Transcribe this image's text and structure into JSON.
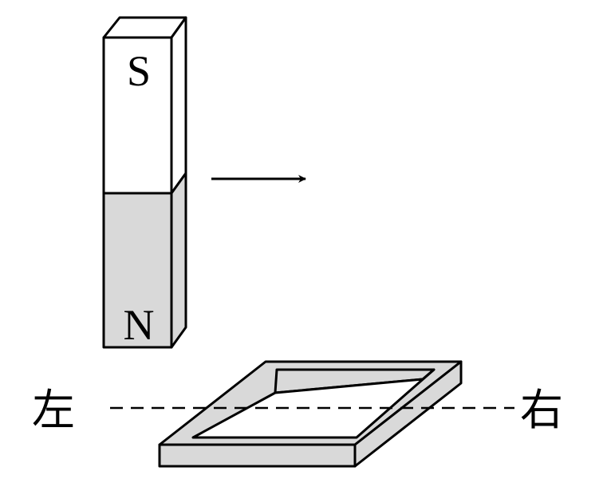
{
  "magnet": {
    "top_pole": "S",
    "bottom_pole": "N",
    "fill_top": "#ffffff",
    "fill_bottom": "#d9d9d9"
  },
  "motion": {
    "direction": "right"
  },
  "loop": {
    "fill": "#d9d9d9"
  },
  "labels": {
    "left": "左",
    "right": "右"
  },
  "colors": {
    "stroke": "#000000"
  }
}
